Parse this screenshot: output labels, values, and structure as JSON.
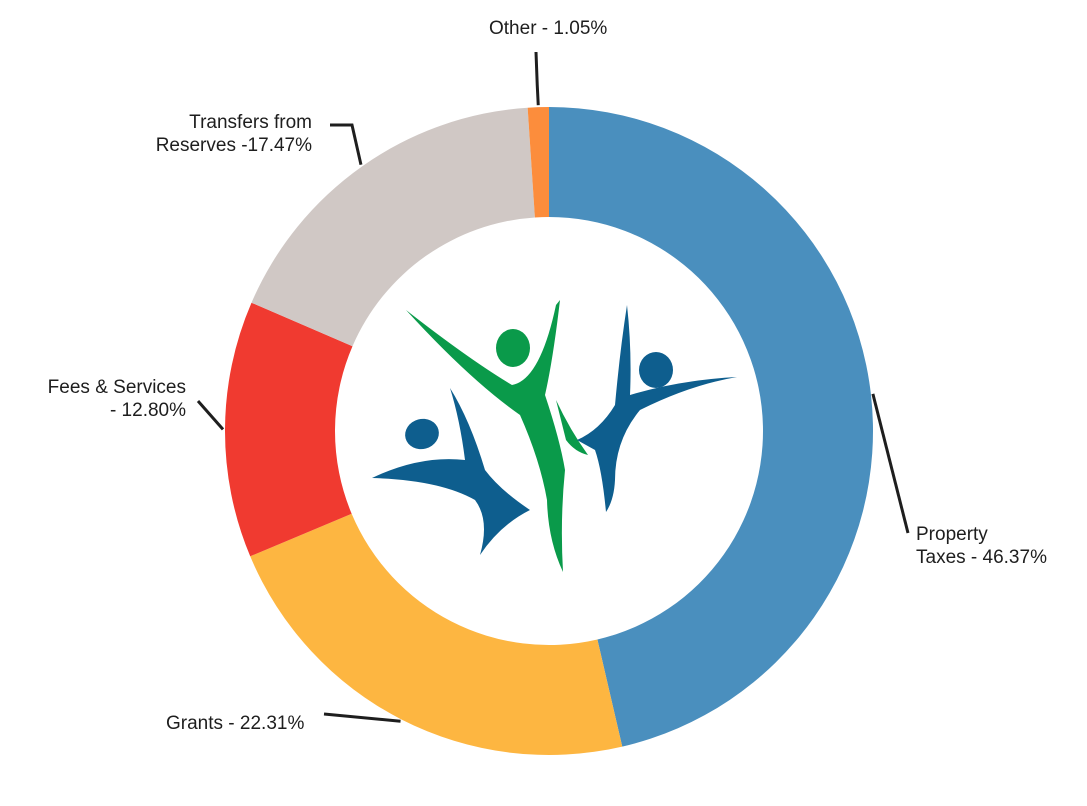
{
  "chart_data": {
    "type": "pie",
    "style": "donut",
    "title": "",
    "slices": [
      {
        "name": "Property Taxes",
        "value": 46.37,
        "color": "#4A8FBE",
        "label_lines": [
          "Property",
          "Taxes - 46.37%"
        ]
      },
      {
        "name": "Grants",
        "value": 22.31,
        "color": "#FDB641",
        "label_lines": [
          "Grants - 22.31%"
        ]
      },
      {
        "name": "Fees & Services",
        "value": 12.8,
        "color": "#F03A30",
        "label_lines": [
          "Fees & Services",
          "- 12.80%"
        ]
      },
      {
        "name": "Transfers from Reserves",
        "value": 17.47,
        "color": "#D0C8C5",
        "label_lines": [
          "Transfers from",
          "Reserves -17.47%"
        ]
      },
      {
        "name": "Other",
        "value": 1.05,
        "color": "#FC8D3C",
        "label_lines": [
          "Other - 1.05%"
        ]
      }
    ],
    "start": "top, clockwise",
    "center": "logo",
    "logo_colors": {
      "blue": "#0E5E8E",
      "green": "#0A9A4A"
    }
  }
}
